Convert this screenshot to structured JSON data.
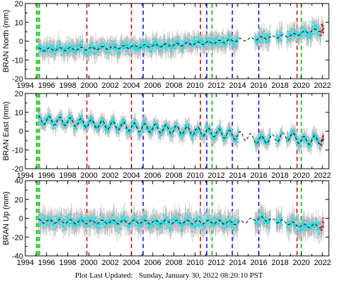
{
  "footer": {
    "label": "Plot Last Updated:",
    "timestamp": "Sunday, January 30, 2022 08:20:10 PST"
  },
  "colors": {
    "error_bars": "#bbbbbb",
    "data": "#00e5ee",
    "recent": "#ee0000",
    "model": "#000000",
    "offset_red": "#dd0000",
    "offset_blue": "#0000dd",
    "offset_green": "#00bb00"
  },
  "chart_data": [
    {
      "type": "scatter",
      "ylabel": "BRAN North (mm)",
      "xlim": [
        1994,
        2022.6
      ],
      "ylim": [
        -20,
        20
      ],
      "yticks": [
        -20,
        -10,
        0,
        10,
        20
      ],
      "xticks": [
        1994,
        1996,
        1998,
        2000,
        2002,
        2004,
        2006,
        2008,
        2010,
        2012,
        2014,
        2016,
        2018,
        2020,
        2022
      ],
      "trend": {
        "x": [
          1995,
          2000,
          2004,
          2008,
          2011,
          2014,
          2016,
          2019,
          2021,
          2022.1
        ],
        "y": [
          -4.5,
          -4,
          -3,
          -2,
          -1,
          0.5,
          1.5,
          3,
          5.5,
          6
        ]
      },
      "noise": 3.5,
      "seasonal": 0.8
    },
    {
      "type": "scatter",
      "ylabel": "BRAN East (mm)",
      "xlim": [
        1994,
        2022.6
      ],
      "ylim": [
        -20,
        20
      ],
      "yticks": [
        -20,
        -10,
        0,
        10,
        20
      ],
      "xticks": [
        1994,
        1996,
        1998,
        2000,
        2002,
        2004,
        2006,
        2008,
        2010,
        2012,
        2014,
        2016,
        2018,
        2020,
        2022
      ],
      "trend": {
        "x": [
          1995,
          1998,
          2002,
          2006,
          2010,
          2012,
          2015,
          2016,
          2019,
          2020,
          2022.1
        ],
        "y": [
          6,
          5,
          3,
          1.5,
          0,
          -1,
          -3,
          -5,
          -2.5,
          -5,
          -4.5
        ]
      },
      "noise": 2.8,
      "seasonal": 2.2
    },
    {
      "type": "scatter",
      "ylabel": "BRAN Up (mm)",
      "xlim": [
        1994,
        2022.6
      ],
      "ylim": [
        -40,
        40
      ],
      "yticks": [
        -40,
        -20,
        0,
        20,
        40
      ],
      "xticks": [
        1994,
        1996,
        1998,
        2000,
        2002,
        2004,
        2006,
        2008,
        2010,
        2012,
        2014,
        2016,
        2018,
        2020,
        2022
      ],
      "trend": {
        "x": [
          1995,
          2000,
          2008,
          2012,
          2014,
          2016,
          2018,
          2020,
          2022.1
        ],
        "y": [
          -3,
          -4,
          -4,
          -4,
          -5,
          0,
          -3,
          -8,
          -8
        ]
      },
      "noise": 8,
      "seasonal": 2
    }
  ],
  "data_gaps": [
    [
      1994,
      1995.2
    ],
    [
      2014.1,
      2015.6
    ],
    [
      2017.1,
      2017.6
    ],
    [
      2018.2,
      2018.6
    ]
  ],
  "recent_start": 2021.85,
  "offsets": [
    {
      "x": 1995.05,
      "color": "green"
    },
    {
      "x": 1995.2,
      "color": "green"
    },
    {
      "x": 1995.35,
      "color": "green"
    },
    {
      "x": 1999.8,
      "color": "red"
    },
    {
      "x": 2004.0,
      "color": "red"
    },
    {
      "x": 2005.1,
      "color": "blue"
    },
    {
      "x": 2010.5,
      "color": "red"
    },
    {
      "x": 2011.1,
      "color": "blue"
    },
    {
      "x": 2011.6,
      "color": "green"
    },
    {
      "x": 2013.5,
      "color": "blue"
    },
    {
      "x": 2016.0,
      "color": "blue"
    },
    {
      "x": 2019.6,
      "color": "red"
    },
    {
      "x": 2020.0,
      "color": "green"
    }
  ]
}
